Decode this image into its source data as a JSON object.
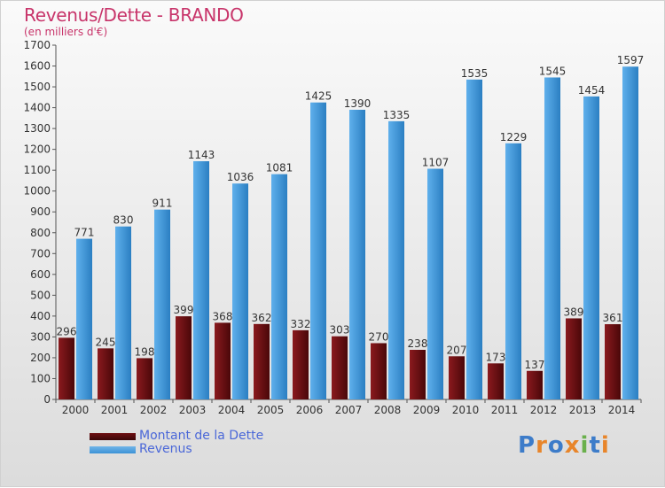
{
  "header": {
    "title": "Revenus/Dette - BRANDO",
    "subtitle": "(en milliers d'€)"
  },
  "legend": {
    "debt_label": "Montant de la Dette",
    "revenue_label": "Revenus"
  },
  "logo": {
    "text": "Proxiti",
    "letter_colors": [
      "#3d7cc9",
      "#e8852a",
      "#3d7cc9",
      "#e8852a",
      "#6ab04c",
      "#3d7cc9",
      "#e8852a"
    ]
  },
  "colors": {
    "debt": "#6e0f12",
    "revenue": "#3d93d6",
    "title": "#c8346a",
    "legend_text": "#4a67d8"
  },
  "chart_data": {
    "type": "bar",
    "categories": [
      "2000",
      "2001",
      "2002",
      "2003",
      "2004",
      "2005",
      "2006",
      "2007",
      "2008",
      "2009",
      "2010",
      "2011",
      "2012",
      "2013",
      "2014"
    ],
    "series": [
      {
        "name": "Montant de la Dette",
        "values": [
          296,
          245,
          198,
          399,
          368,
          362,
          332,
          303,
          270,
          238,
          207,
          173,
          137,
          389,
          361
        ]
      },
      {
        "name": "Revenus",
        "values": [
          771,
          830,
          911,
          1143,
          1036,
          1081,
          1425,
          1390,
          1335,
          1107,
          1535,
          1229,
          1545,
          1454,
          1597
        ]
      }
    ],
    "title": "Revenus/Dette - BRANDO",
    "subtitle": "(en milliers d'€)",
    "ylim": [
      0,
      1700
    ],
    "yticks": [
      0,
      100,
      200,
      300,
      400,
      500,
      600,
      700,
      800,
      900,
      1000,
      1100,
      1200,
      1300,
      1400,
      1500,
      1600,
      1700
    ],
    "grid": false,
    "legend": "bottom-left"
  }
}
